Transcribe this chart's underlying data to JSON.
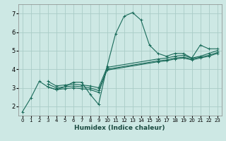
{
  "title": "",
  "xlabel": "Humidex (Indice chaleur)",
  "ylabel": "",
  "background_color": "#cde8e4",
  "grid_color": "#aaccc7",
  "line_color": "#1a6b5a",
  "xlim": [
    -0.5,
    23.5
  ],
  "ylim": [
    1.5,
    7.5
  ],
  "xticks": [
    0,
    1,
    2,
    3,
    4,
    5,
    6,
    7,
    8,
    9,
    10,
    11,
    12,
    13,
    14,
    15,
    16,
    17,
    18,
    19,
    20,
    21,
    22,
    23
  ],
  "yticks": [
    2,
    3,
    4,
    5,
    6,
    7
  ],
  "series": [
    [
      1.7,
      2.45,
      3.35,
      3.05,
      2.9,
      3.05,
      3.3,
      3.3,
      2.65,
      2.1,
      4.15,
      5.9,
      6.85,
      7.05,
      6.65,
      5.3,
      4.85,
      4.7,
      4.85,
      4.85,
      4.6,
      5.3,
      5.1,
      5.1
    ],
    [
      null,
      null,
      null,
      3.35,
      3.1,
      3.15,
      3.2,
      3.15,
      3.1,
      3.0,
      4.1,
      null,
      null,
      null,
      null,
      null,
      4.55,
      4.6,
      4.7,
      4.75,
      4.6,
      4.7,
      4.85,
      5.0
    ],
    [
      null,
      null,
      null,
      3.2,
      3.0,
      3.05,
      3.1,
      3.05,
      3.0,
      2.85,
      4.0,
      null,
      null,
      null,
      null,
      null,
      4.45,
      4.5,
      4.6,
      4.65,
      4.55,
      4.65,
      4.75,
      4.9
    ],
    [
      null,
      null,
      null,
      3.05,
      2.9,
      2.95,
      3.0,
      2.95,
      2.9,
      2.75,
      3.95,
      null,
      null,
      null,
      null,
      null,
      4.4,
      4.45,
      4.55,
      4.6,
      4.5,
      4.6,
      4.7,
      4.85
    ]
  ]
}
